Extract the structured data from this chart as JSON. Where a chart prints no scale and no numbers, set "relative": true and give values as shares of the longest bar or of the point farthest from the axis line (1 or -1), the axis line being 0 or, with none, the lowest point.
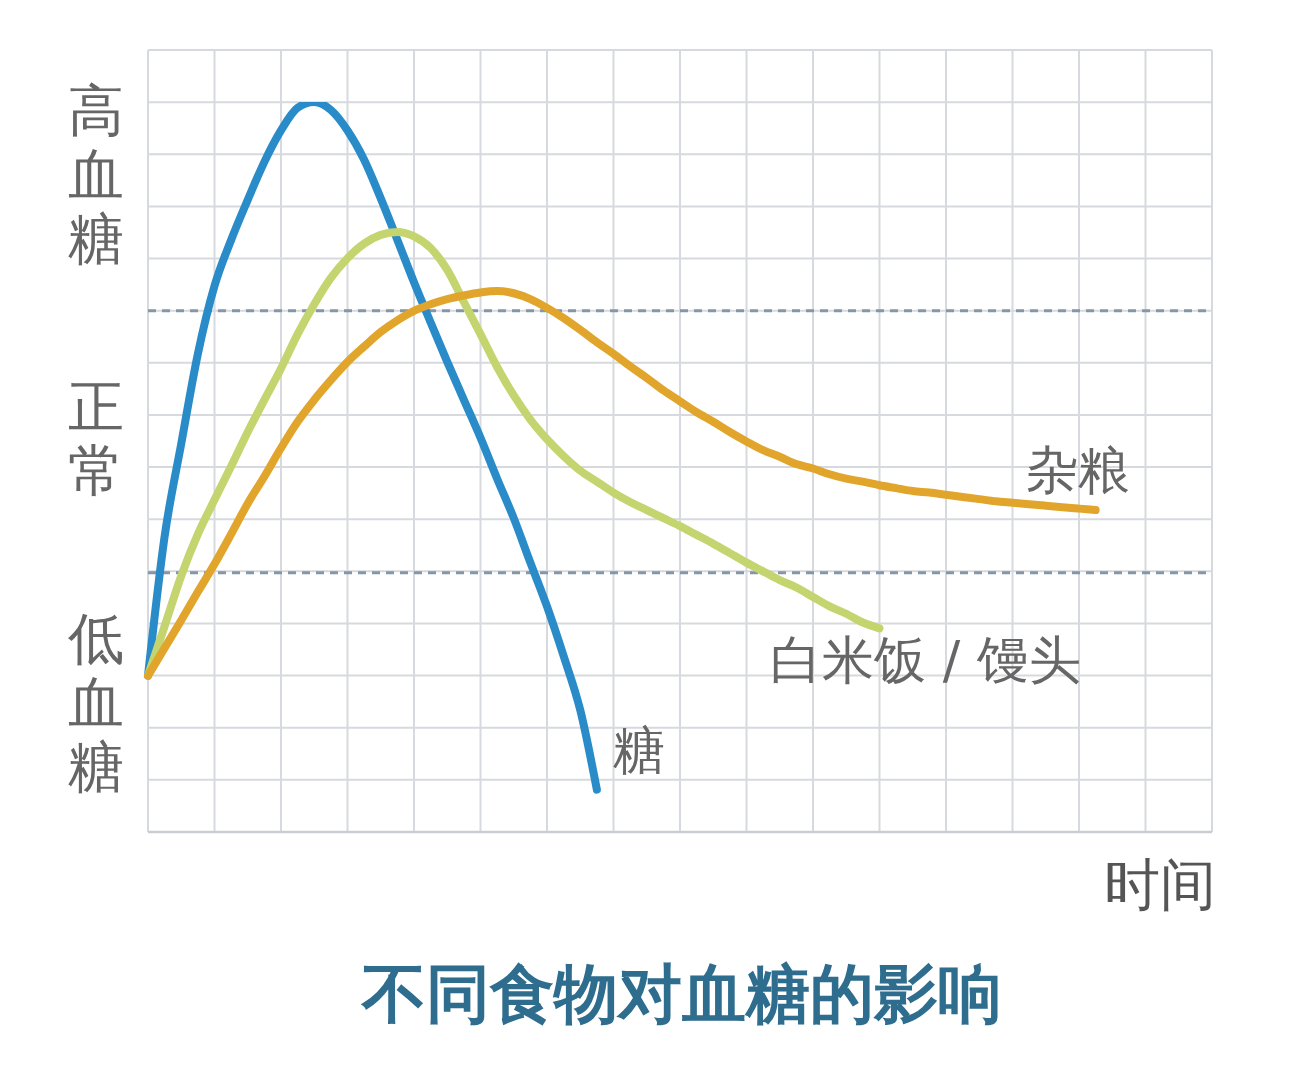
{
  "chart_data": {
    "type": "line",
    "title": "不同食物对血糖的影响",
    "xlabel": "时间",
    "annotations": [
      "高血糖",
      "正常",
      "低血糖"
    ],
    "relative": true,
    "grid": true,
    "tick_labels": false,
    "categories": [
      null,
      null,
      null,
      null,
      null,
      null,
      null,
      null,
      null,
      null,
      null,
      null,
      null,
      null,
      null,
      null,
      null,
      null,
      null,
      null,
      null,
      null,
      null,
      null,
      null,
      null,
      null,
      null,
      null,
      null,
      null,
      null,
      null,
      null,
      null,
      null,
      null,
      null,
      null,
      null,
      null,
      null,
      null,
      null,
      null,
      null,
      null,
      null,
      null,
      null,
      null,
      null,
      null,
      null,
      null,
      null,
      null,
      null,
      null,
      null,
      null,
      null,
      null,
      null,
      null
    ],
    "series": [
      {
        "name": "糖",
        "color": "#2a8bc9",
        "values": [
          0.214,
          0.405,
          0.532,
          0.655,
          0.748,
          0.811,
          0.866,
          0.918,
          0.961,
          0.992,
          1,
          0.989,
          0.961,
          0.921,
          0.868,
          0.811,
          0.753,
          0.698,
          0.644,
          0.592,
          0.54,
          0.484,
          0.43,
          0.369,
          0.309,
          0.241,
          0.167,
          0.058,
          null,
          null,
          null,
          null,
          null,
          null,
          null,
          null,
          null,
          null,
          null,
          null,
          null,
          null,
          null,
          null,
          null,
          null,
          null,
          null,
          null,
          null,
          null,
          null,
          null,
          null,
          null,
          null,
          null,
          null,
          null,
          null,
          null,
          null,
          null,
          null,
          null
        ]
      },
      {
        "name": "白米饭 / 馒头",
        "color": "#c4d46e",
        "values": [
          0.214,
          0.282,
          0.351,
          0.408,
          0.455,
          0.501,
          0.548,
          0.592,
          0.635,
          0.682,
          0.723,
          0.759,
          0.786,
          0.806,
          0.818,
          0.822,
          0.816,
          0.8,
          0.77,
          0.726,
          0.682,
          0.637,
          0.598,
          0.565,
          0.538,
          0.515,
          0.495,
          0.48,
          0.465,
          0.452,
          0.441,
          0.43,
          0.419,
          0.407,
          0.395,
          0.382,
          0.369,
          0.357,
          0.345,
          0.335,
          0.322,
          0.309,
          0.299,
          0.287,
          0.279,
          null,
          null,
          null,
          null,
          null,
          null,
          null,
          null,
          null,
          null,
          null,
          null,
          null,
          null,
          null,
          null,
          null,
          null,
          null,
          null
        ]
      },
      {
        "name": "杂粮",
        "color": "#e2a52c",
        "values": [
          0.214,
          0.252,
          0.29,
          0.329,
          0.367,
          0.408,
          0.45,
          0.487,
          0.526,
          0.562,
          0.592,
          0.619,
          0.644,
          0.665,
          0.685,
          0.701,
          0.714,
          0.723,
          0.73,
          0.735,
          0.739,
          0.741,
          0.738,
          0.73,
          0.718,
          0.704,
          0.688,
          0.671,
          0.655,
          0.638,
          0.622,
          0.605,
          0.59,
          0.575,
          0.562,
          0.548,
          0.535,
          0.523,
          0.514,
          0.504,
          0.498,
          0.49,
          0.484,
          0.48,
          0.475,
          0.471,
          0.467,
          0.465,
          0.462,
          0.459,
          0.456,
          0.453,
          0.451,
          0.449,
          0.447,
          0.445,
          0.443,
          0.441,
          null,
          null,
          null,
          null,
          null,
          null,
          null
        ]
      }
    ],
    "ref_lines": [
      {
        "axis": "y",
        "value": 0.714,
        "color": "#8596a8",
        "line_style": "dashed"
      },
      {
        "axis": "y",
        "value": 0.355,
        "color": "#8596a8",
        "line_style": "dashed"
      }
    ]
  }
}
